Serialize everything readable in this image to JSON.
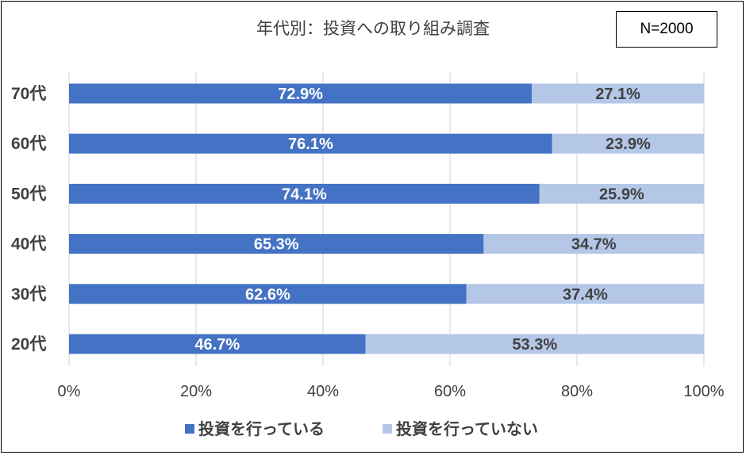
{
  "chart_data": {
    "type": "bar",
    "orientation": "horizontal",
    "stacked": "percent",
    "title": "年代別：投資への取り組み調査",
    "annotation": "N=2000",
    "categories": [
      "70代",
      "60代",
      "50代",
      "40代",
      "30代",
      "20代"
    ],
    "series": [
      {
        "name": "投資を行っている",
        "color": "#4472C4",
        "values": [
          72.9,
          76.1,
          74.1,
          65.3,
          62.6,
          46.7
        ],
        "labels": [
          "72.9%",
          "76.1%",
          "74.1%",
          "65.3%",
          "62.6%",
          "46.7%"
        ]
      },
      {
        "name": "投資を行っていない",
        "color": "#B4C7E7",
        "values": [
          27.1,
          23.9,
          25.9,
          34.7,
          37.4,
          53.3
        ],
        "labels": [
          "27.1%",
          "23.9%",
          "25.9%",
          "34.7%",
          "37.4%",
          "53.3%"
        ]
      }
    ],
    "xlim": [
      0,
      100
    ],
    "x_ticks": [
      "0%",
      "20%",
      "40%",
      "60%",
      "80%",
      "100%"
    ],
    "grid": true,
    "legend_position": "bottom"
  }
}
